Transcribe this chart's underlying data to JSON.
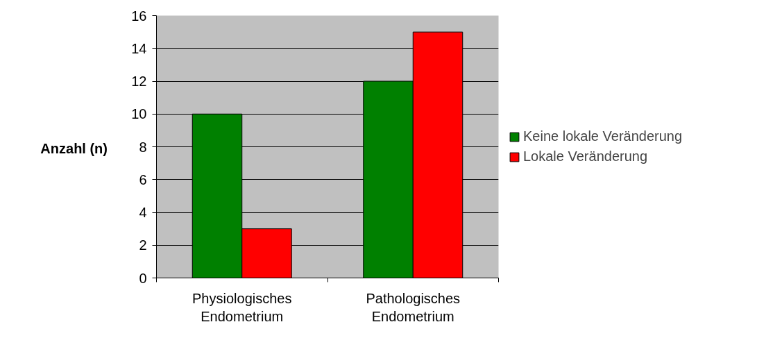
{
  "chart_data": {
    "type": "bar",
    "ylabel": "Anzahl (n)",
    "categories": [
      "Physiologisches\nEndometrium",
      "Pathologisches\nEndometrium"
    ],
    "series": [
      {
        "name": "Keine lokale Veränderung",
        "color": "#008000",
        "values": [
          10,
          12
        ]
      },
      {
        "name": "Lokale Veränderung",
        "color": "#ff0000",
        "values": [
          3,
          15
        ]
      }
    ],
    "ylim": [
      0,
      16
    ],
    "yticks": [
      0,
      2,
      4,
      6,
      8,
      10,
      12,
      14,
      16
    ],
    "grid": "y",
    "legend": "right"
  }
}
